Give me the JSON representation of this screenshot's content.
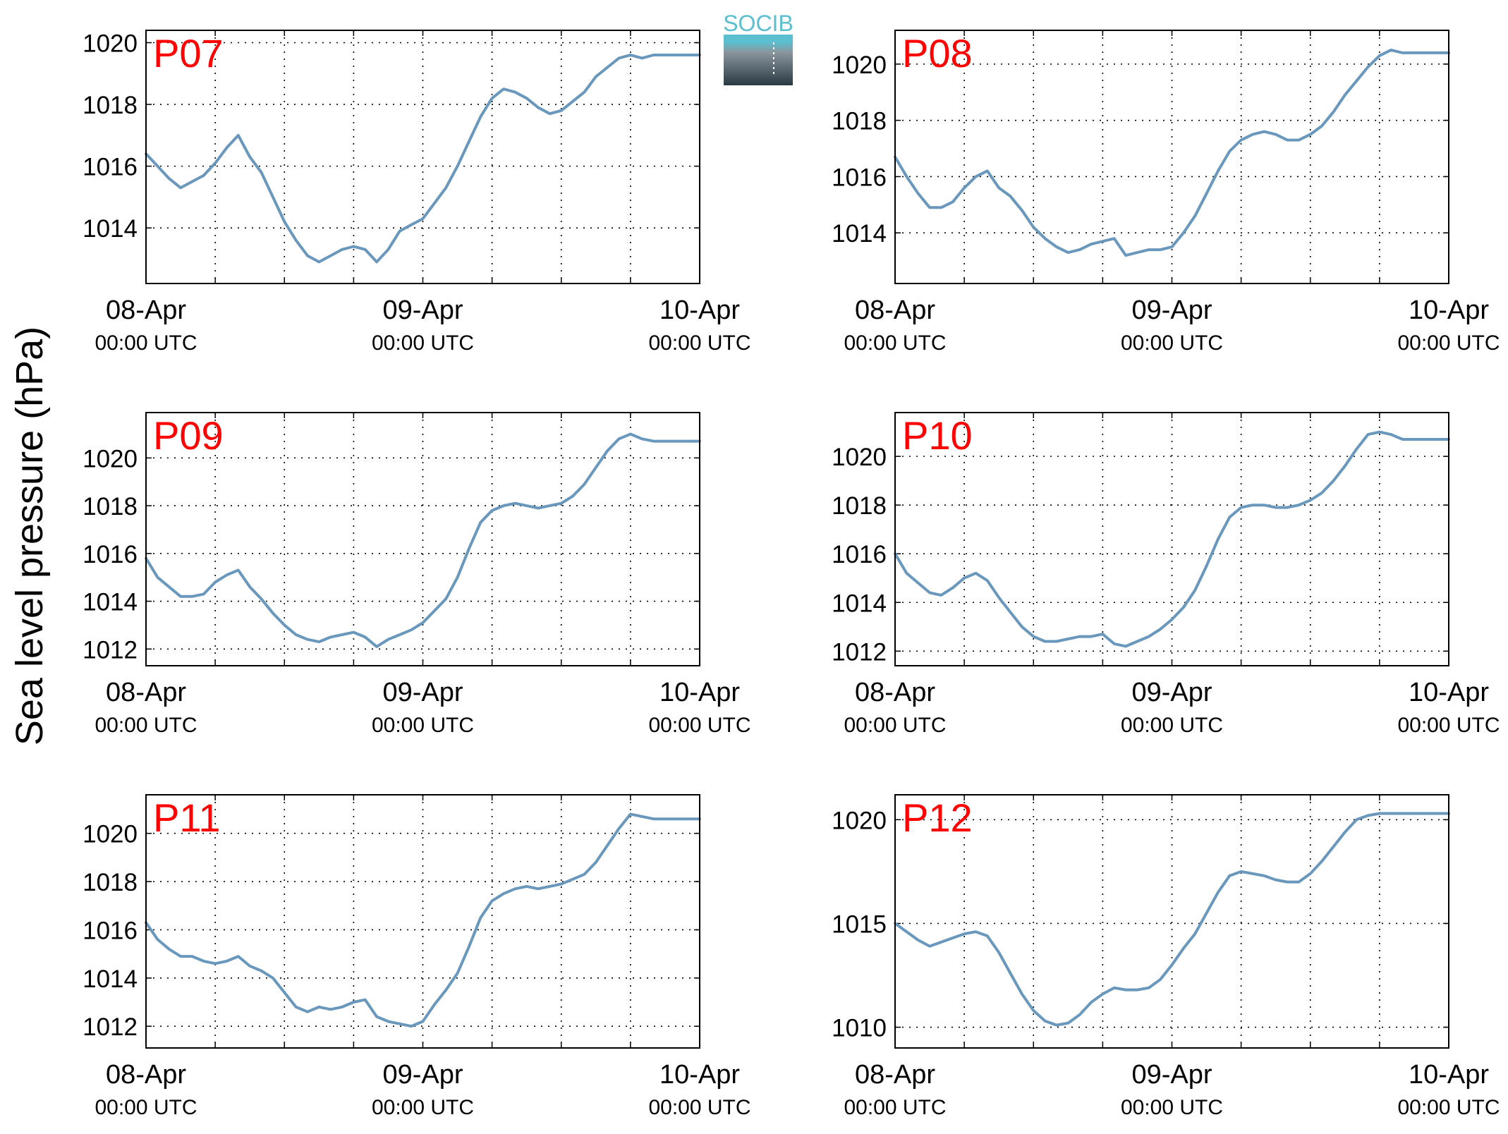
{
  "figure": {
    "ylabel": "Sea level pressure (hPa)",
    "logo_text": "SOCIB",
    "xticks": [
      {
        "date": "08-Apr",
        "time": "00:00 UTC"
      },
      {
        "date": "09-Apr",
        "time": "00:00 UTC"
      },
      {
        "date": "10-Apr",
        "time": "00:00 UTC"
      }
    ]
  },
  "style": {
    "line_color": "#6a98bd",
    "title_color": "#ff0000",
    "logo_top": "#5bbfd0",
    "logo_bottom": "#2a3a44"
  },
  "chart_data": [
    {
      "type": "line",
      "title": "P07",
      "x_unit": "hours since 08-Apr 00:00 UTC",
      "xlim": [
        0,
        48
      ],
      "ylim": [
        1012.2,
        1020.4
      ],
      "yticks": [
        1014,
        1016,
        1018,
        1020
      ],
      "grid": true,
      "x": [
        0,
        1,
        2,
        3,
        4,
        5,
        6,
        7,
        8,
        9,
        10,
        11,
        12,
        13,
        14,
        15,
        16,
        17,
        18,
        19,
        20,
        21,
        22,
        23,
        24,
        25,
        26,
        27,
        28,
        29,
        30,
        31,
        32,
        33,
        34,
        35,
        36,
        37,
        38,
        39,
        40,
        41,
        42,
        43,
        44,
        45,
        46,
        47,
        48
      ],
      "y": [
        1016.4,
        1016.0,
        1015.6,
        1015.3,
        1015.5,
        1015.7,
        1016.1,
        1016.6,
        1017.0,
        1016.3,
        1015.8,
        1015.0,
        1014.2,
        1013.6,
        1013.1,
        1012.9,
        1013.1,
        1013.3,
        1013.4,
        1013.3,
        1012.9,
        1013.3,
        1013.9,
        1014.1,
        1014.3,
        1014.8,
        1015.3,
        1016.0,
        1016.8,
        1017.6,
        1018.2,
        1018.5,
        1018.4,
        1018.2,
        1017.9,
        1017.7,
        1017.8,
        1018.1,
        1018.4,
        1018.9,
        1019.2,
        1019.5,
        1019.6,
        1019.5,
        1019.6,
        1019.6,
        1019.6,
        1019.6,
        1019.6
      ]
    },
    {
      "type": "line",
      "title": "P08",
      "x_unit": "hours since 08-Apr 00:00 UTC",
      "xlim": [
        0,
        48
      ],
      "ylim": [
        1012.2,
        1021.2
      ],
      "yticks": [
        1014,
        1016,
        1018,
        1020
      ],
      "grid": true,
      "x": [
        0,
        1,
        2,
        3,
        4,
        5,
        6,
        7,
        8,
        9,
        10,
        11,
        12,
        13,
        14,
        15,
        16,
        17,
        18,
        19,
        20,
        21,
        22,
        23,
        24,
        25,
        26,
        27,
        28,
        29,
        30,
        31,
        32,
        33,
        34,
        35,
        36,
        37,
        38,
        39,
        40,
        41,
        42,
        43,
        44,
        45,
        46,
        47,
        48
      ],
      "y": [
        1016.7,
        1016.0,
        1015.4,
        1014.9,
        1014.9,
        1015.1,
        1015.6,
        1016.0,
        1016.2,
        1015.6,
        1015.3,
        1014.8,
        1014.2,
        1013.8,
        1013.5,
        1013.3,
        1013.4,
        1013.6,
        1013.7,
        1013.8,
        1013.2,
        1013.3,
        1013.4,
        1013.4,
        1013.5,
        1014.0,
        1014.6,
        1015.4,
        1016.2,
        1016.9,
        1017.3,
        1017.5,
        1017.6,
        1017.5,
        1017.3,
        1017.3,
        1017.5,
        1017.8,
        1018.3,
        1018.9,
        1019.4,
        1019.9,
        1020.3,
        1020.5,
        1020.4,
        1020.4,
        1020.4,
        1020.4,
        1020.4
      ]
    },
    {
      "type": "line",
      "title": "P09",
      "x_unit": "hours since 08-Apr 00:00 UTC",
      "xlim": [
        0,
        48
      ],
      "ylim": [
        1011.3,
        1021.9
      ],
      "yticks": [
        1012,
        1014,
        1016,
        1018,
        1020
      ],
      "grid": true,
      "x": [
        0,
        1,
        2,
        3,
        4,
        5,
        6,
        7,
        8,
        9,
        10,
        11,
        12,
        13,
        14,
        15,
        16,
        17,
        18,
        19,
        20,
        21,
        22,
        23,
        24,
        25,
        26,
        27,
        28,
        29,
        30,
        31,
        32,
        33,
        34,
        35,
        36,
        37,
        38,
        39,
        40,
        41,
        42,
        43,
        44,
        45,
        46,
        47,
        48
      ],
      "y": [
        1015.8,
        1015.0,
        1014.6,
        1014.2,
        1014.2,
        1014.3,
        1014.8,
        1015.1,
        1015.3,
        1014.6,
        1014.1,
        1013.5,
        1013.0,
        1012.6,
        1012.4,
        1012.3,
        1012.5,
        1012.6,
        1012.7,
        1012.5,
        1012.1,
        1012.4,
        1012.6,
        1012.8,
        1013.1,
        1013.6,
        1014.1,
        1015.0,
        1016.2,
        1017.3,
        1017.8,
        1018.0,
        1018.1,
        1018.0,
        1017.9,
        1018.0,
        1018.1,
        1018.4,
        1018.9,
        1019.6,
        1020.3,
        1020.8,
        1021.0,
        1020.8,
        1020.7,
        1020.7,
        1020.7,
        1020.7,
        1020.7
      ]
    },
    {
      "type": "line",
      "title": "P10",
      "x_unit": "hours since 08-Apr 00:00 UTC",
      "xlim": [
        0,
        48
      ],
      "ylim": [
        1011.4,
        1021.8
      ],
      "yticks": [
        1012,
        1014,
        1016,
        1018,
        1020
      ],
      "grid": true,
      "x": [
        0,
        1,
        2,
        3,
        4,
        5,
        6,
        7,
        8,
        9,
        10,
        11,
        12,
        13,
        14,
        15,
        16,
        17,
        18,
        19,
        20,
        21,
        22,
        23,
        24,
        25,
        26,
        27,
        28,
        29,
        30,
        31,
        32,
        33,
        34,
        35,
        36,
        37,
        38,
        39,
        40,
        41,
        42,
        43,
        44,
        45,
        46,
        47,
        48
      ],
      "y": [
        1016.0,
        1015.2,
        1014.8,
        1014.4,
        1014.3,
        1014.6,
        1015.0,
        1015.2,
        1014.9,
        1014.2,
        1013.6,
        1013.0,
        1012.6,
        1012.4,
        1012.4,
        1012.5,
        1012.6,
        1012.6,
        1012.7,
        1012.3,
        1012.2,
        1012.4,
        1012.6,
        1012.9,
        1013.3,
        1013.8,
        1014.5,
        1015.5,
        1016.6,
        1017.5,
        1017.9,
        1018.0,
        1018.0,
        1017.9,
        1017.9,
        1018.0,
        1018.2,
        1018.5,
        1019.0,
        1019.6,
        1020.3,
        1020.9,
        1021.0,
        1020.9,
        1020.7,
        1020.7,
        1020.7,
        1020.7,
        1020.7
      ]
    },
    {
      "type": "line",
      "title": "P11",
      "x_unit": "hours since 08-Apr 00:00 UTC",
      "xlim": [
        0,
        48
      ],
      "ylim": [
        1011.1,
        1021.6
      ],
      "yticks": [
        1012,
        1014,
        1016,
        1018,
        1020
      ],
      "grid": true,
      "x": [
        0,
        1,
        2,
        3,
        4,
        5,
        6,
        7,
        8,
        9,
        10,
        11,
        12,
        13,
        14,
        15,
        16,
        17,
        18,
        19,
        20,
        21,
        22,
        23,
        24,
        25,
        26,
        27,
        28,
        29,
        30,
        31,
        32,
        33,
        34,
        35,
        36,
        37,
        38,
        39,
        40,
        41,
        42,
        43,
        44,
        45,
        46,
        47,
        48
      ],
      "y": [
        1016.3,
        1015.6,
        1015.2,
        1014.9,
        1014.9,
        1014.7,
        1014.6,
        1014.7,
        1014.9,
        1014.5,
        1014.3,
        1014.0,
        1013.4,
        1012.8,
        1012.6,
        1012.8,
        1012.7,
        1012.8,
        1013.0,
        1013.1,
        1012.4,
        1012.2,
        1012.1,
        1012.0,
        1012.2,
        1012.9,
        1013.5,
        1014.2,
        1015.3,
        1016.5,
        1017.2,
        1017.5,
        1017.7,
        1017.8,
        1017.7,
        1017.8,
        1017.9,
        1018.1,
        1018.3,
        1018.8,
        1019.5,
        1020.2,
        1020.8,
        1020.7,
        1020.6,
        1020.6,
        1020.6,
        1020.6,
        1020.6
      ]
    },
    {
      "type": "line",
      "title": "P12",
      "x_unit": "hours since 08-Apr 00:00 UTC",
      "xlim": [
        0,
        48
      ],
      "ylim": [
        1009.0,
        1021.2
      ],
      "yticks": [
        1010,
        1015,
        1020
      ],
      "grid": true,
      "x": [
        0,
        1,
        2,
        3,
        4,
        5,
        6,
        7,
        8,
        9,
        10,
        11,
        12,
        13,
        14,
        15,
        16,
        17,
        18,
        19,
        20,
        21,
        22,
        23,
        24,
        25,
        26,
        27,
        28,
        29,
        30,
        31,
        32,
        33,
        34,
        35,
        36,
        37,
        38,
        39,
        40,
        41,
        42,
        43,
        44,
        45,
        46,
        47,
        48
      ],
      "y": [
        1015.0,
        1014.6,
        1014.2,
        1013.9,
        1014.1,
        1014.3,
        1014.5,
        1014.6,
        1014.4,
        1013.6,
        1012.6,
        1011.6,
        1010.8,
        1010.3,
        1010.1,
        1010.2,
        1010.6,
        1011.2,
        1011.6,
        1011.9,
        1011.8,
        1011.8,
        1011.9,
        1012.3,
        1013.0,
        1013.8,
        1014.5,
        1015.5,
        1016.5,
        1017.3,
        1017.5,
        1017.4,
        1017.3,
        1017.1,
        1017.0,
        1017.0,
        1017.4,
        1018.0,
        1018.7,
        1019.4,
        1020.0,
        1020.2,
        1020.3,
        1020.3,
        1020.3,
        1020.3,
        1020.3,
        1020.3,
        1020.3
      ]
    }
  ]
}
